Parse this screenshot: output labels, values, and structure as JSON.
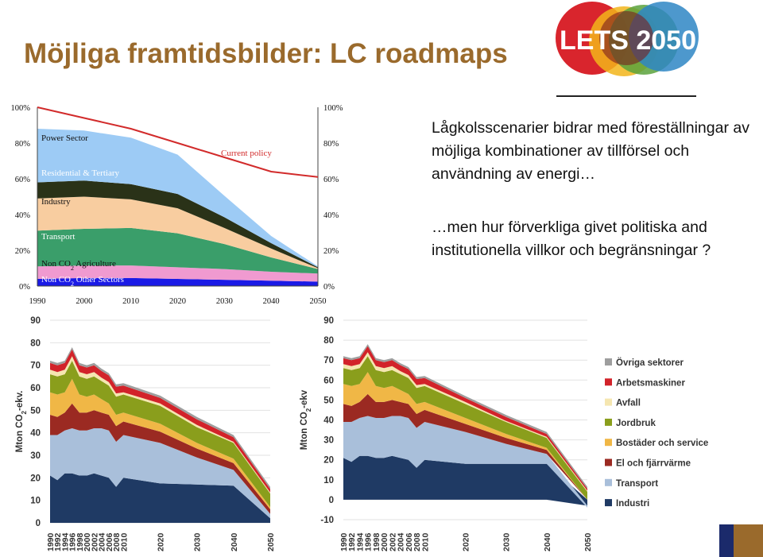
{
  "title": "Möjliga framtidsbilder: LC roadmaps",
  "logo_text": "LETS 2050",
  "text": {
    "para1": "Lågkolsscenarier bidrar med föreställningar av möjliga kombinationer av tillförsel och användning av energi…",
    "para2": "…men hur förverkliga givet politiska and institutionella villkor och begränsningar ?"
  },
  "colors": {
    "title": "#9a6a2c",
    "accent_blue": "#1b2a6b"
  },
  "chart_data": [
    {
      "type": "area",
      "x": [
        1990,
        2000,
        2010,
        2020,
        2030,
        2040,
        2050
      ],
      "ylim": [
        0,
        100
      ],
      "yticks": [
        "0%",
        "20%",
        "40%",
        "60%",
        "80%",
        "100%"
      ],
      "xticks": [
        "1990",
        "2000",
        "2010",
        "2020",
        "2030",
        "2040",
        "2050"
      ],
      "series": [
        {
          "name": "Non CO2 Other Sectors",
          "color": "#1a1ae6",
          "values": [
            4,
            4.5,
            4.5,
            4,
            3.5,
            3,
            2.5
          ]
        },
        {
          "name": "Non CO2 Agriculture",
          "color": "#f09ad0",
          "values": [
            7,
            7,
            7,
            6.5,
            6,
            5,
            4.5
          ]
        },
        {
          "name": "Transport",
          "color": "#3a9e6a",
          "values": [
            20,
            20.5,
            21,
            19,
            14,
            8,
            2.5
          ]
        },
        {
          "name": "Industry",
          "color": "#f8cda0",
          "values": [
            18,
            18,
            16,
            14,
            9,
            5,
            0.5
          ]
        },
        {
          "name": "Residential & Tertiary",
          "color": "#2a3218",
          "values": [
            9,
            9,
            8.5,
            8,
            6,
            3,
            0.5
          ]
        },
        {
          "name": "Power Sector",
          "color": "#9dcbf5",
          "values": [
            30,
            28,
            26,
            22,
            12,
            4,
            0.5
          ]
        }
      ],
      "line": {
        "name": "Current policy",
        "color": "#d22b2b",
        "values": [
          100,
          94,
          88,
          80,
          72,
          64,
          61
        ]
      }
    },
    {
      "type": "area",
      "ylabel": "Mton CO2-ekv.",
      "ylim": [
        0,
        90
      ],
      "yticks": [
        0,
        10,
        20,
        30,
        40,
        50,
        60,
        70,
        80,
        90
      ],
      "x": [
        1990,
        1992,
        1994,
        1996,
        1998,
        2000,
        2002,
        2004,
        2006,
        2008,
        2010,
        2020,
        2030,
        2040,
        2050
      ],
      "xticks": [
        "1990",
        "1992",
        "1994",
        "1996",
        "1998",
        "2000",
        "2002",
        "2004",
        "2006",
        "2008",
        "2010",
        "2020",
        "2030",
        "2040",
        "2050"
      ],
      "series": [
        {
          "name": "Industri",
          "color": "#1f3a64",
          "values": [
            21,
            19,
            22,
            22,
            21,
            21,
            22,
            21,
            20,
            16,
            20,
            17.5,
            17,
            16.5,
            2
          ]
        },
        {
          "name": "Transport",
          "color": "#a9bfda",
          "values": [
            18,
            20,
            19,
            20,
            20,
            20,
            20,
            21,
            21,
            20,
            19,
            18,
            12,
            7,
            2
          ]
        },
        {
          "name": "El och fjärrvärme",
          "color": "#9b2a22",
          "values": [
            9,
            8,
            8,
            11,
            8,
            8,
            8,
            7,
            7,
            7,
            6,
            5,
            4,
            3,
            2
          ]
        },
        {
          "name": "Bostäder och service",
          "color": "#f0b746",
          "values": [
            10,
            10,
            9,
            11,
            8,
            7,
            7,
            6,
            5,
            5,
            4,
            3.5,
            2.5,
            2,
            1
          ]
        },
        {
          "name": "Jordbruk",
          "color": "#8a9e1c",
          "values": [
            8,
            8,
            8,
            8,
            8,
            8,
            8,
            8,
            8,
            8,
            8,
            8,
            7,
            7,
            6
          ]
        },
        {
          "name": "Avfall",
          "color": "#f5e6b0",
          "values": [
            2,
            2,
            2,
            2,
            2,
            2,
            2,
            1.5,
            1.5,
            1.5,
            1,
            1,
            1,
            0.5,
            0.5
          ]
        },
        {
          "name": "Arbetsmaskiner",
          "color": "#d2232a",
          "values": [
            3,
            3,
            3,
            3,
            3,
            3,
            3,
            3,
            3,
            3,
            3,
            2.5,
            2.5,
            2,
            1.5
          ]
        },
        {
          "name": "Övriga sektorer",
          "color": "#9e9e9e",
          "values": [
            1,
            1,
            1,
            1,
            1,
            1,
            1,
            1,
            1,
            1,
            1,
            1,
            1,
            1,
            1
          ]
        }
      ]
    },
    {
      "type": "area",
      "ylabel": "Mton CO2-ekv",
      "ylim": [
        -10,
        90
      ],
      "yticks": [
        -10,
        0,
        10,
        20,
        30,
        40,
        50,
        60,
        70,
        80,
        90
      ],
      "x": [
        1990,
        1992,
        1994,
        1996,
        1998,
        2000,
        2002,
        2004,
        2006,
        2008,
        2010,
        2020,
        2030,
        2040,
        2050
      ],
      "xticks": [
        "1990",
        "1992",
        "1994",
        "1996",
        "1998",
        "2000",
        "2002",
        "2004",
        "2006",
        "2008",
        "2010",
        "2020",
        "2030",
        "2040",
        "2050"
      ],
      "legend": {
        "position": "right",
        "order": [
          "Övriga sektorer",
          "Arbetsmaskiner",
          "Avfall",
          "Jordbruk",
          "Bostäder och service",
          "El och fjärrvärme",
          "Transport",
          "Industri"
        ]
      },
      "series": [
        {
          "name": "Industri",
          "color": "#1f3a64",
          "values": [
            21,
            19,
            22,
            22,
            21,
            21,
            22,
            21,
            20,
            16,
            20,
            18,
            18,
            18,
            -3
          ]
        },
        {
          "name": "Transport",
          "color": "#a9bfda",
          "values": [
            18,
            20,
            19,
            20,
            20,
            20,
            20,
            21,
            21,
            20,
            19,
            16,
            10,
            5,
            -1
          ]
        },
        {
          "name": "El och fjärrvärme",
          "color": "#9b2a22",
          "values": [
            9,
            8,
            8,
            11,
            8,
            8,
            8,
            7,
            7,
            7,
            6,
            4,
            3,
            2,
            0
          ]
        },
        {
          "name": "Bostäder och service",
          "color": "#f0b746",
          "values": [
            10,
            10,
            9,
            11,
            8,
            7,
            7,
            6,
            5,
            5,
            4,
            3,
            2,
            1,
            0
          ]
        },
        {
          "name": "Jordbruk",
          "color": "#8a9e1c",
          "values": [
            8,
            8,
            8,
            8,
            8,
            8,
            8,
            8,
            8,
            8,
            8,
            7,
            6,
            5,
            4
          ]
        },
        {
          "name": "Avfall",
          "color": "#f5e6b0",
          "values": [
            2,
            2,
            2,
            2,
            2,
            2,
            2,
            1.5,
            1.5,
            1.5,
            1,
            1,
            0.5,
            0.5,
            0.5
          ]
        },
        {
          "name": "Arbetsmaskiner",
          "color": "#d2232a",
          "values": [
            3,
            3,
            3,
            3,
            3,
            3,
            3,
            3,
            3,
            3,
            3,
            2,
            2,
            1.5,
            1
          ]
        },
        {
          "name": "Övriga sektorer",
          "color": "#9e9e9e",
          "values": [
            1,
            1,
            1,
            1,
            1,
            1,
            1,
            1,
            1,
            1,
            1,
            1,
            1,
            1,
            1
          ]
        }
      ]
    }
  ]
}
